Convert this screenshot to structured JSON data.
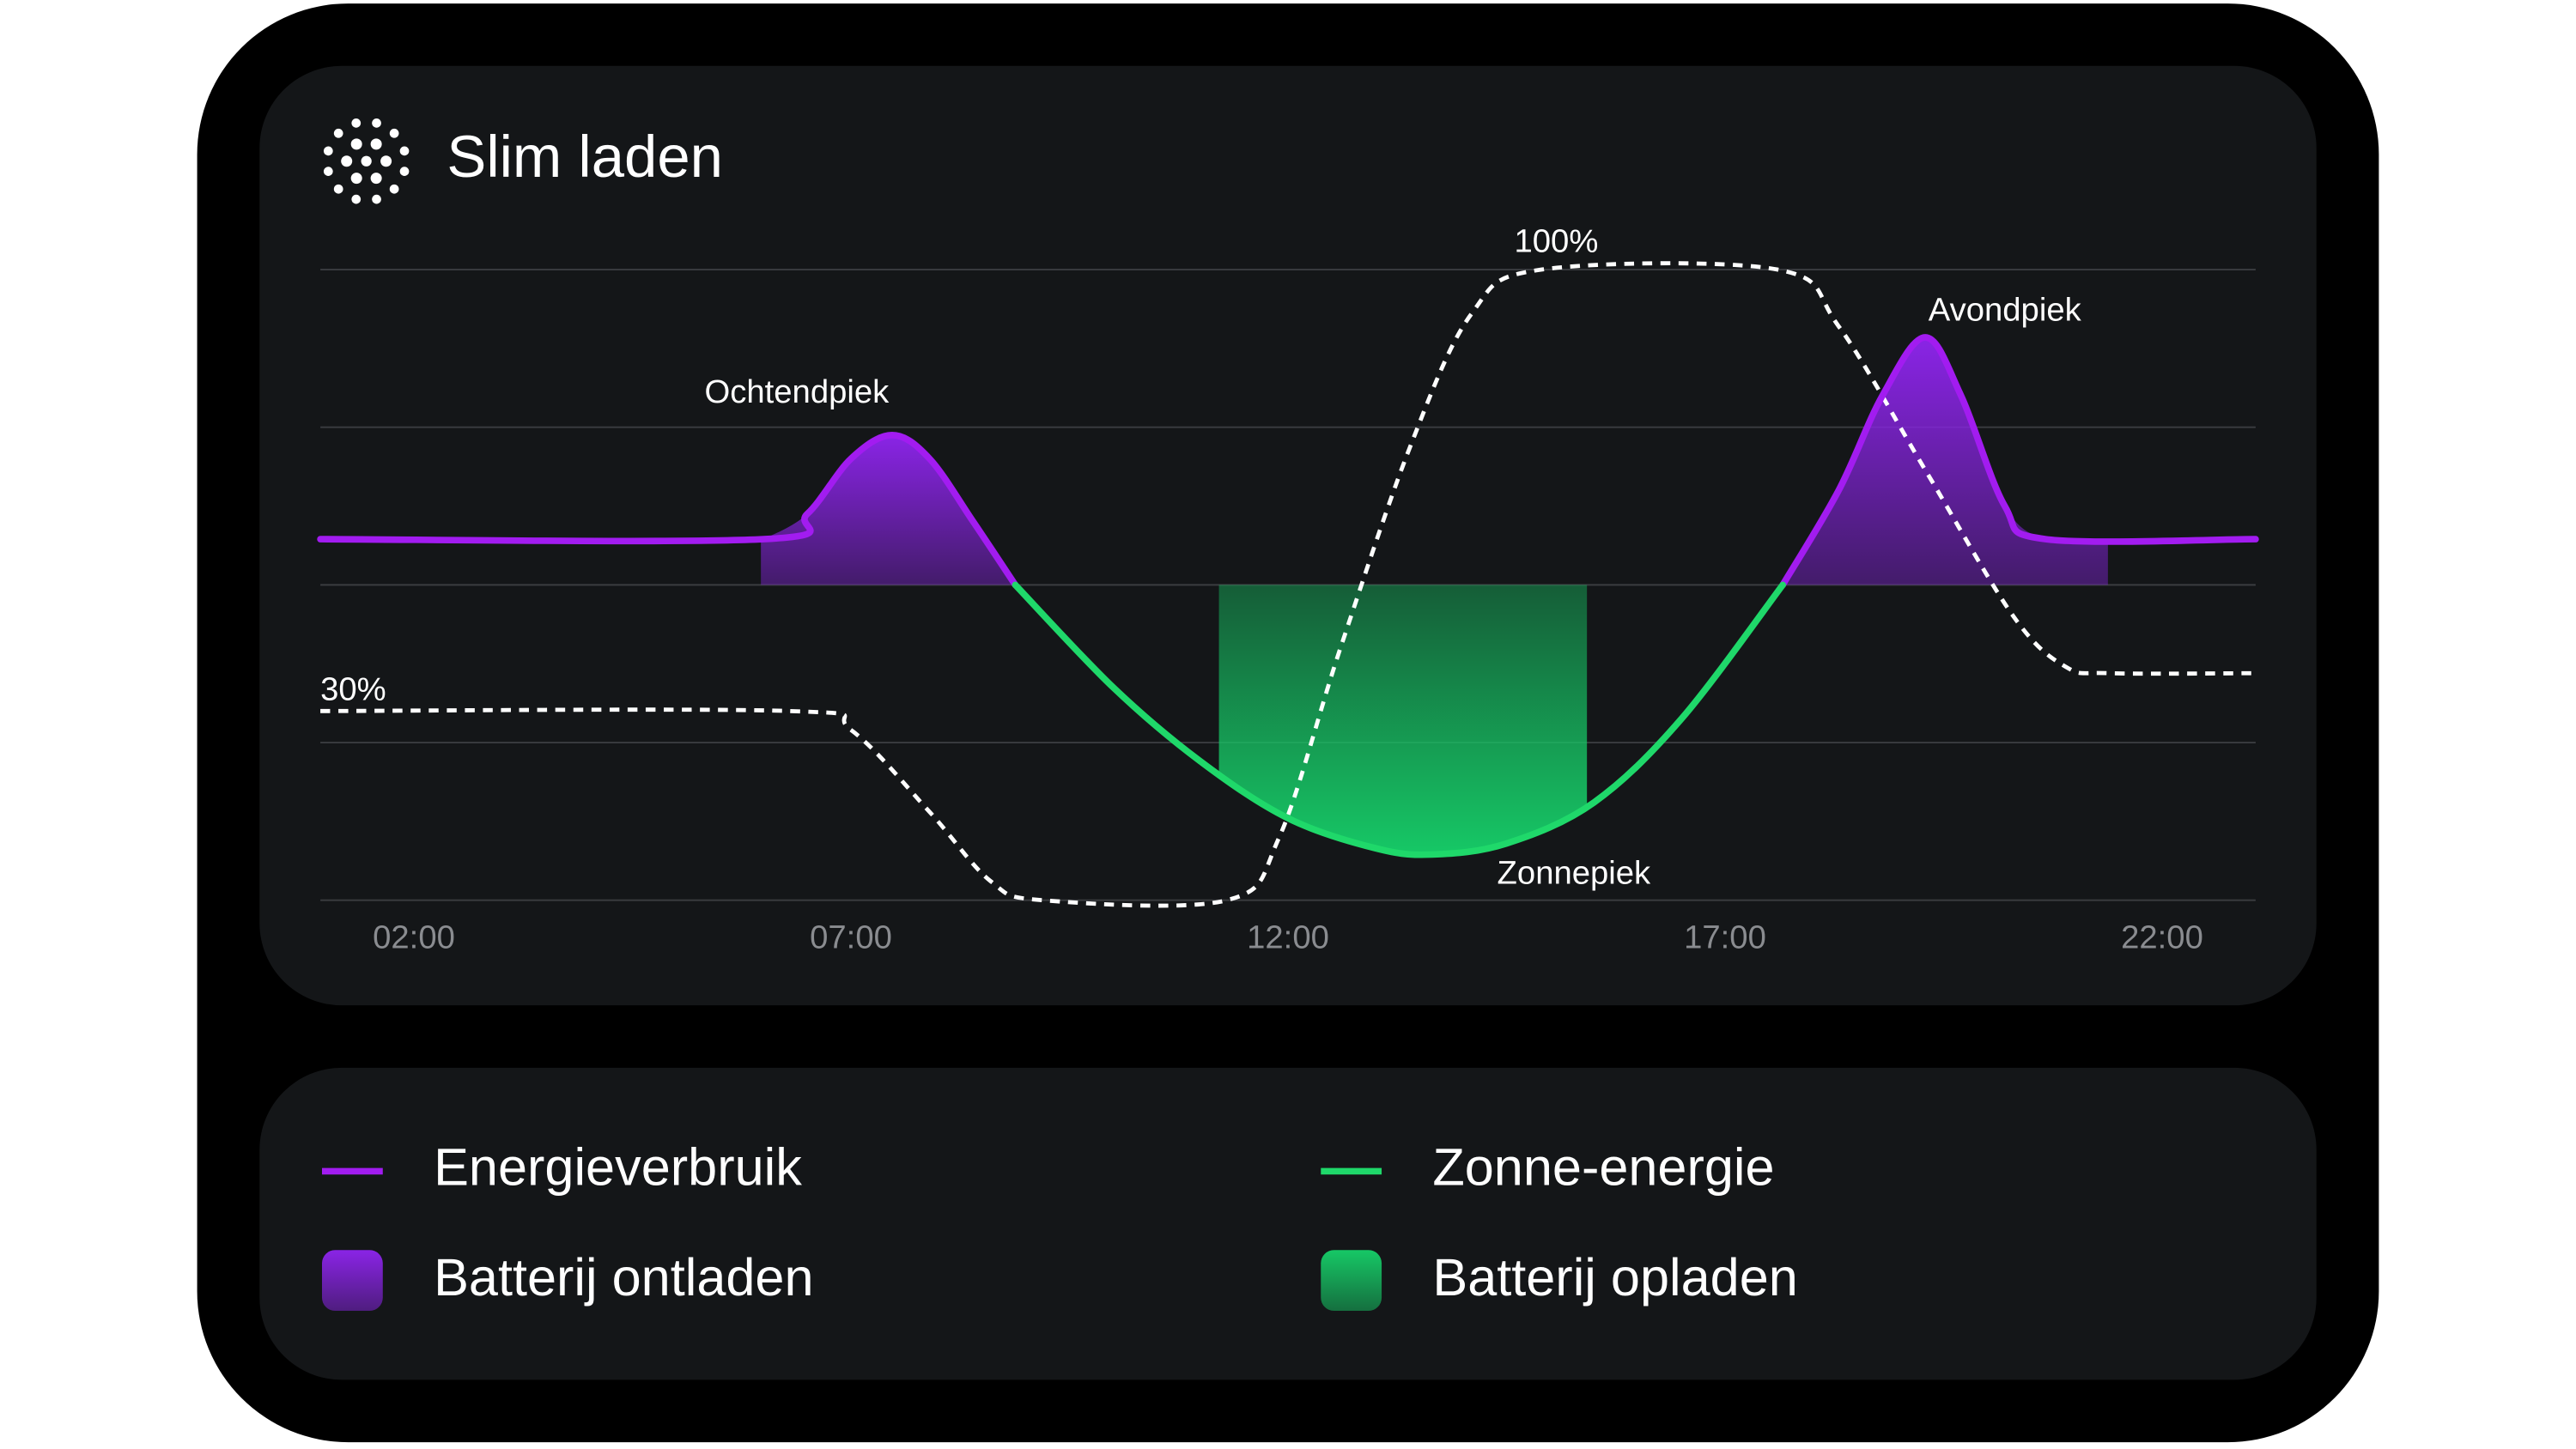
{
  "chart_data": {
    "type": "line",
    "title": "Slim laden",
    "xlim": [
      0.93,
      23.07
    ],
    "xticks": [
      {
        "value": 2,
        "label": "02:00"
      },
      {
        "value": 7,
        "label": "07:00"
      },
      {
        "value": 12,
        "label": "12:00"
      },
      {
        "value": 17,
        "label": "17:00"
      },
      {
        "value": 22,
        "label": "22:00"
      }
    ],
    "ylim": [
      0,
      4
    ],
    "grid_lines": [
      0,
      1,
      2,
      3,
      4
    ],
    "baseline": 2,
    "y2lim": [
      0,
      100
    ],
    "series": [
      {
        "name": "Energieverbruik",
        "color": "#a21cf0",
        "x": [
          0.93,
          6.0,
          6.5,
          7.0,
          7.47,
          7.9,
          8.4,
          8.88,
          13.65,
          17.66,
          18.3,
          18.8,
          19.29,
          19.7,
          20.2,
          20.67,
          23.07
        ],
        "values": [
          2.29,
          2.29,
          2.45,
          2.8,
          2.95,
          2.8,
          2.4,
          2.0,
          null,
          2.0,
          2.6,
          3.2,
          3.57,
          3.2,
          2.5,
          2.29,
          2.29
        ]
      },
      {
        "name": "Zonne-energie",
        "color": "#1fd86a",
        "x": [
          8.88,
          10,
          11,
          12,
          13,
          13.65,
          14.5,
          15.5,
          16.5,
          17.66
        ],
        "values": [
          2.0,
          1.35,
          0.88,
          0.52,
          0.33,
          0.29,
          0.36,
          0.62,
          1.15,
          2.0
        ]
      }
    ],
    "areas": [
      {
        "name": "Batterij ontladen",
        "color": "#8a24e6",
        "ranges": [
          [
            5.97,
            8.88
          ],
          [
            17.66,
            21.38
          ]
        ]
      },
      {
        "name": "Batterij opladen",
        "color": "#16c866",
        "ranges": [
          [
            11.21,
            15.42
          ]
        ]
      }
    ],
    "battery": {
      "color": "#ffffff",
      "axis": "y2",
      "x": [
        0.93,
        6.3,
        7.0,
        7.9,
        8.6,
        9.2,
        11.3,
        11.9,
        12.6,
        13.4,
        14.1,
        14.9,
        17.6,
        18.3,
        19.3,
        20.3,
        20.9,
        21.4,
        23.07
      ],
      "values": [
        30,
        30,
        27,
        14,
        3,
        0,
        0,
        10,
        40,
        72,
        93,
        100,
        100,
        91,
        68,
        45,
        37,
        36,
        36
      ],
      "value_labels": [
        "30%",
        null,
        null,
        null,
        null,
        null,
        null,
        null,
        null,
        null,
        null,
        "100%",
        null,
        null,
        null,
        null,
        null,
        null,
        null
      ]
    },
    "annotations": [
      {
        "text": "Ochtendpiek",
        "x": 6.38,
        "y": 3.21
      },
      {
        "text": "Avondpiek",
        "x": 20.2,
        "y": 3.73
      },
      {
        "text": "Zonnepiek",
        "x": 15.27,
        "y": 0.16
      }
    ]
  }
}
